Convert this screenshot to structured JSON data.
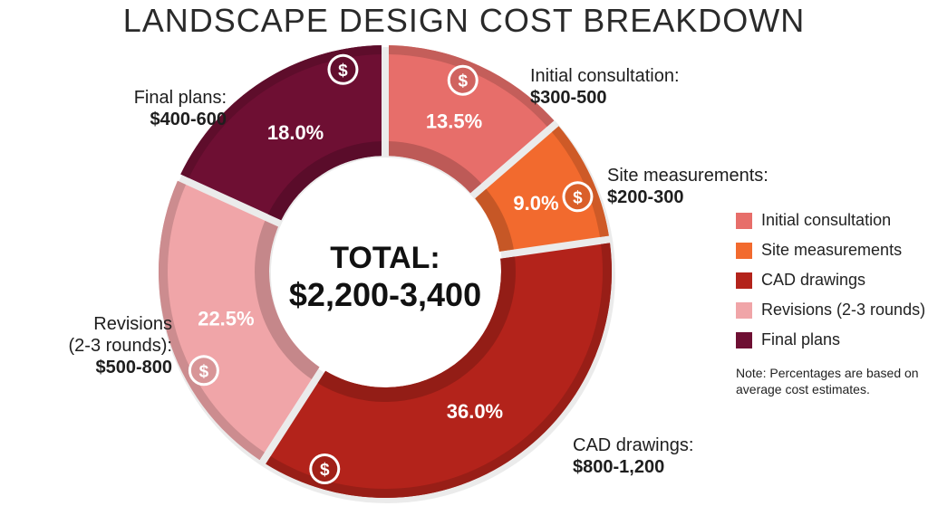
{
  "chart_data": {
    "type": "pie",
    "title": "LANDSCAPE DESIGN COST BREAKDOWN",
    "center_label": "TOTAL:",
    "center_value": "$2,200-3,400",
    "slices": [
      {
        "label": "Initial consultation",
        "callout": "Initial consultation:",
        "cost": "$300-500",
        "value": 13.5,
        "value_label": "13.5%",
        "color": "#e76e6a"
      },
      {
        "label": "Site measurements",
        "callout": "Site measurements:",
        "cost": "$200-300",
        "value": 9.0,
        "value_label": "9.0%",
        "color": "#f26a2e"
      },
      {
        "label": "CAD drawings",
        "callout": "CAD drawings:",
        "cost": "$800-1,200",
        "value": 36.0,
        "value_label": "36.0%",
        "color": "#b3231b"
      },
      {
        "label": "Revisions (2-3 rounds)",
        "callout_lines": [
          "Revisions",
          "(2-3 rounds):"
        ],
        "cost": "$500-800",
        "value": 22.5,
        "value_label": "22.5%",
        "color": "#f0a5a8"
      },
      {
        "label": "Final plans",
        "callout": "Final plans:",
        "cost": "$400-600",
        "value": 18.0,
        "value_label": "18.0%",
        "color": "#6e0f33"
      }
    ],
    "icon": "dollar-icon",
    "legend_position": "right",
    "note": "Note: Percentages are based on average cost estimates."
  }
}
